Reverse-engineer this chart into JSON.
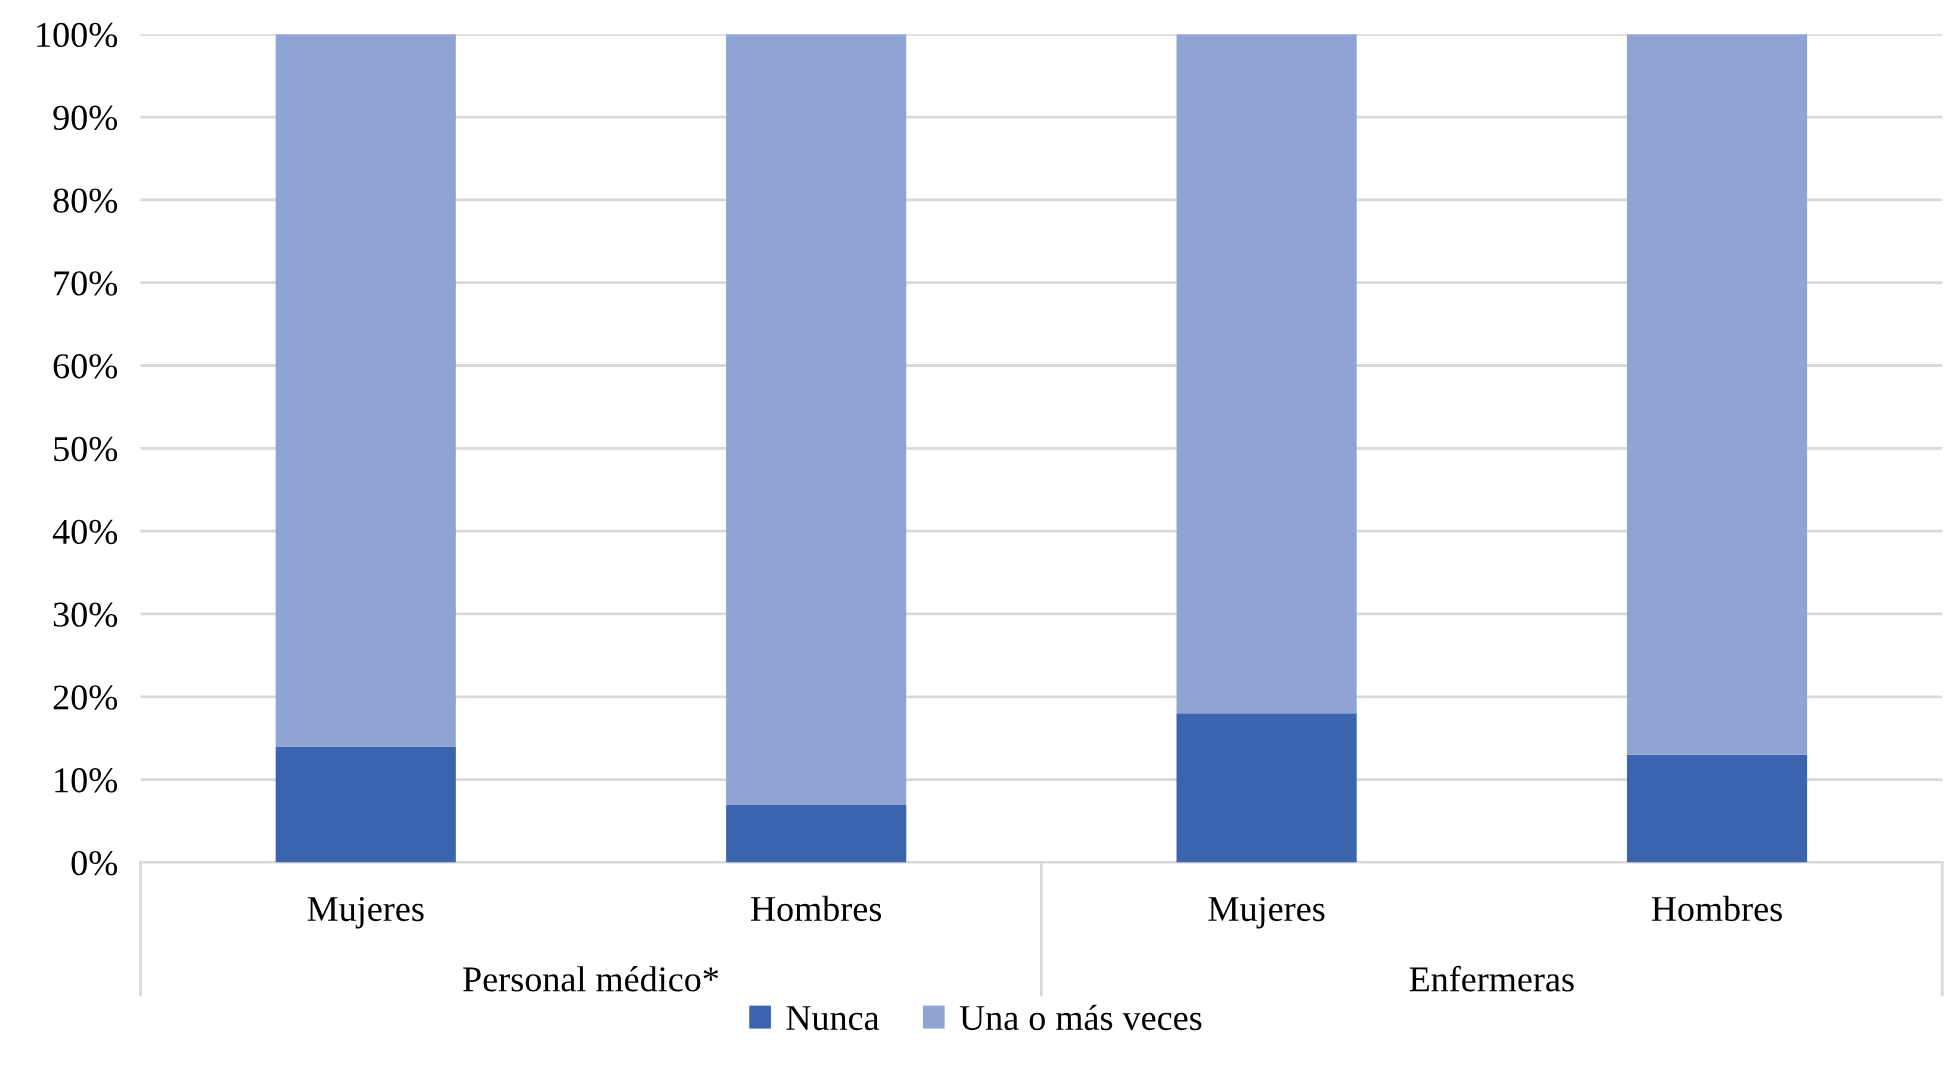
{
  "chart_data": {
    "type": "bar",
    "stacked": true,
    "categories": [
      "Mujeres",
      "Hombres",
      "Mujeres",
      "Hombres"
    ],
    "series": [
      {
        "name": "Nunca",
        "color": "#3c64ae",
        "values": [
          14,
          7,
          18,
          13
        ]
      },
      {
        "name": "Una o más veces",
        "color": "#8fa3d5",
        "values": [
          86,
          93,
          82,
          87
        ]
      }
    ],
    "annotations": [
      "Personal médico*",
      "Enfermeras"
    ],
    "ylim": [
      0,
      100
    ],
    "yticks": [
      {
        "value": 0,
        "label": "0%"
      },
      {
        "value": 10,
        "label": "10%"
      },
      {
        "value": 20,
        "label": "20%"
      },
      {
        "value": 30,
        "label": "30%"
      },
      {
        "value": 40,
        "label": "40%"
      },
      {
        "value": 50,
        "label": "50%"
      },
      {
        "value": 60,
        "label": "60%"
      },
      {
        "value": 70,
        "label": "70%"
      },
      {
        "value": 80,
        "label": "80%"
      },
      {
        "value": 90,
        "label": "90%"
      },
      {
        "value": 100,
        "label": "100%"
      }
    ],
    "grid": "y",
    "legend": "bottom"
  }
}
